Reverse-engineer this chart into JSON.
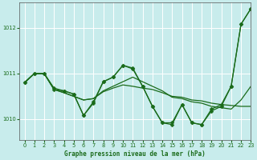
{
  "title": "Graphe pression niveau de la mer (hPa)",
  "bg_color": "#c8ecec",
  "grid_color": "#ffffff",
  "line_color": "#1a6b1a",
  "xlim": [
    -0.5,
    23
  ],
  "ylim": [
    1009.55,
    1012.55
  ],
  "yticks": [
    1010,
    1011,
    1012
  ],
  "xticks": [
    0,
    1,
    2,
    3,
    4,
    5,
    6,
    7,
    8,
    9,
    10,
    11,
    12,
    13,
    14,
    15,
    16,
    17,
    18,
    19,
    20,
    21,
    22,
    23
  ],
  "series": [
    {
      "y": [
        1010.8,
        1011.0,
        1011.0,
        1010.65,
        1010.62,
        1010.55,
        1010.08,
        1010.35,
        1010.82,
        1010.92,
        1011.18,
        1011.12,
        1010.72,
        1010.28,
        1009.92,
        1009.92,
        1010.32,
        1009.92,
        1009.88,
        1010.18,
        1010.28,
        1010.72,
        1012.08,
        1012.42
      ],
      "marker": "D",
      "markersize": 2.5,
      "linewidth": 0.9
    },
    {
      "y": [
        1010.8,
        1011.0,
        1011.0,
        1010.65,
        1010.58,
        1010.5,
        1010.42,
        1010.45,
        1010.6,
        1010.68,
        1010.75,
        1010.72,
        1010.68,
        1010.65,
        1010.58,
        1010.5,
        1010.48,
        1010.42,
        1010.4,
        1010.35,
        1010.32,
        1010.3,
        1010.28,
        1010.28
      ],
      "marker": "D",
      "markersize": 0,
      "linewidth": 0.9
    },
    {
      "y": [
        1010.8,
        1011.0,
        1011.0,
        1010.65,
        1010.58,
        1010.5,
        1010.42,
        1010.45,
        1010.62,
        1010.72,
        1010.82,
        1010.92,
        1010.82,
        1010.72,
        1010.62,
        1010.48,
        1010.45,
        1010.38,
        1010.35,
        1010.28,
        1010.25,
        1010.22,
        1010.42,
        1010.72
      ],
      "marker": "D",
      "markersize": 0,
      "linewidth": 0.9
    },
    {
      "y": [
        1010.8,
        1011.0,
        1011.0,
        1010.68,
        1010.62,
        1010.55,
        1010.08,
        1010.38,
        1010.82,
        1010.92,
        1011.18,
        1011.1,
        1010.72,
        1010.28,
        1009.92,
        1009.88,
        1010.32,
        1009.92,
        1009.88,
        1010.22,
        1010.32,
        1010.72,
        1012.08,
        1012.42
      ],
      "marker": "D",
      "markersize": 2.5,
      "linewidth": 0.9
    }
  ]
}
